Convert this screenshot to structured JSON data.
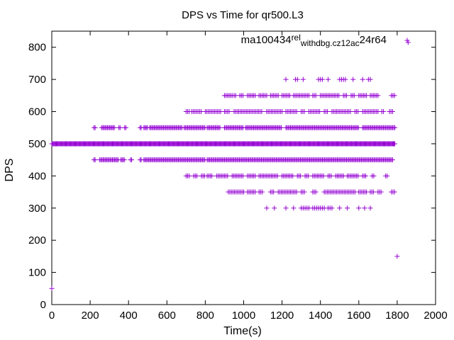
{
  "chart_data": {
    "type": "scatter",
    "title": "DPS vs Time for qr500.L3",
    "xlabel": "Time(s)",
    "ylabel": "DPS",
    "xlim": [
      0,
      2000
    ],
    "ylim": [
      0,
      850
    ],
    "xticks": [
      0,
      200,
      400,
      600,
      800,
      1000,
      1200,
      1400,
      1600,
      1800,
      2000
    ],
    "yticks": [
      0,
      100,
      200,
      300,
      400,
      500,
      600,
      700,
      800
    ],
    "grid": false,
    "legend_position": "top-right",
    "marker_color": "#9400d3",
    "series": [
      {
        "name": "ma100434_rel_withdbg.cz12a_c24r64",
        "legend_label": "ma100434_rel_withdbg.cz12a_c24r64",
        "legend_parts": [
          {
            "text": "ma100434",
            "shift": "none"
          },
          {
            "text": "rel",
            "shift": "sup"
          },
          {
            "text": "withdbg.cz12a",
            "shift": "sub"
          },
          {
            "text": "c",
            "shift": "sub"
          },
          {
            "text": "24r64",
            "shift": "none"
          }
        ],
        "bands": [
          {
            "y": 500,
            "ranges": [
              [
                0,
                1790
              ]
            ],
            "step": 4
          },
          {
            "y": 550,
            "ranges": [
              [
                220,
                230
              ],
              [
                260,
                330
              ],
              [
                350,
                360
              ],
              [
                380,
                390
              ],
              [
                460,
                470
              ],
              [
                480,
                500
              ],
              [
                510,
                680
              ],
              [
                690,
                800
              ],
              [
                810,
                880
              ],
              [
                900,
                1000
              ],
              [
                1010,
                1200
              ],
              [
                1220,
                1600
              ],
              [
                1620,
                1790
              ]
            ],
            "step": 6
          },
          {
            "y": 450,
            "ranges": [
              [
                220,
                230
              ],
              [
                250,
                350
              ],
              [
                360,
                380
              ],
              [
                410,
                420
              ],
              [
                460,
                470
              ],
              [
                480,
                800
              ],
              [
                810,
                1780
              ]
            ],
            "step": 6
          },
          {
            "y": 600,
            "ranges": [
              [
                700,
                720
              ],
              [
                730,
                780
              ],
              [
                800,
                880
              ],
              [
                900,
                930
              ],
              [
                950,
                1100
              ],
              [
                1120,
                1200
              ],
              [
                1220,
                1280
              ],
              [
                1300,
                1320
              ],
              [
                1340,
                1400
              ],
              [
                1420,
                1440
              ],
              [
                1460,
                1560
              ],
              [
                1580,
                1600
              ],
              [
                1620,
                1700
              ],
              [
                1720,
                1730
              ],
              [
                1760,
                1780
              ]
            ],
            "step": 8
          },
          {
            "y": 400,
            "ranges": [
              [
                700,
                720
              ],
              [
                740,
                760
              ],
              [
                780,
                800
              ],
              [
                810,
                840
              ],
              [
                860,
                920
              ],
              [
                940,
                1000
              ],
              [
                1020,
                1060
              ],
              [
                1080,
                1180
              ],
              [
                1200,
                1260
              ],
              [
                1280,
                1300
              ],
              [
                1320,
                1340
              ],
              [
                1360,
                1420
              ],
              [
                1440,
                1460
              ],
              [
                1480,
                1520
              ],
              [
                1540,
                1600
              ],
              [
                1620,
                1640
              ],
              [
                1670,
                1680
              ],
              [
                1740,
                1750
              ]
            ],
            "step": 8
          },
          {
            "y": 650,
            "ranges": [
              [
                900,
                940
              ],
              [
                950,
                960
              ],
              [
                980,
                1000
              ],
              [
                1020,
                1060
              ],
              [
                1080,
                1120
              ],
              [
                1140,
                1180
              ],
              [
                1200,
                1240
              ],
              [
                1260,
                1340
              ],
              [
                1360,
                1380
              ],
              [
                1400,
                1500
              ],
              [
                1520,
                1540
              ],
              [
                1560,
                1580
              ],
              [
                1600,
                1640
              ],
              [
                1660,
                1700
              ],
              [
                1770,
                1790
              ]
            ],
            "step": 8
          },
          {
            "y": 350,
            "ranges": [
              [
                920,
                1000
              ],
              [
                1020,
                1060
              ],
              [
                1080,
                1100
              ],
              [
                1140,
                1160
              ],
              [
                1180,
                1280
              ],
              [
                1300,
                1320
              ],
              [
                1360,
                1380
              ],
              [
                1420,
                1580
              ],
              [
                1600,
                1640
              ],
              [
                1660,
                1680
              ],
              [
                1700,
                1720
              ],
              [
                1770,
                1790
              ]
            ],
            "step": 8
          },
          {
            "y": 700,
            "ranges": [
              [
                1220,
                1220
              ],
              [
                1270,
                1280
              ],
              [
                1310,
                1310
              ],
              [
                1390,
                1410
              ],
              [
                1440,
                1440
              ],
              [
                1500,
                1530
              ],
              [
                1570,
                1570
              ],
              [
                1620,
                1620
              ],
              [
                1650,
                1660
              ]
            ],
            "step": 10
          },
          {
            "y": 300,
            "ranges": [
              [
                1120,
                1120
              ],
              [
                1160,
                1160
              ],
              [
                1220,
                1220
              ],
              [
                1260,
                1260
              ],
              [
                1300,
                1340
              ],
              [
                1360,
                1420
              ],
              [
                1440,
                1460
              ],
              [
                1500,
                1500
              ],
              [
                1540,
                1540
              ],
              [
                1600,
                1600
              ],
              [
                1630,
                1630
              ],
              [
                1660,
                1660
              ]
            ],
            "step": 10
          }
        ],
        "points": [
          [
            1857,
            815
          ],
          [
            1800,
            150
          ],
          [
            0,
            50
          ]
        ]
      }
    ]
  }
}
